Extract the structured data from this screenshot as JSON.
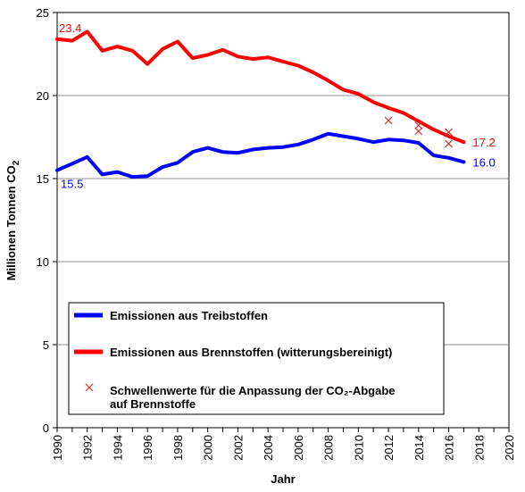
{
  "chart_data": {
    "type": "line",
    "xlabel": "Jahr",
    "ylabel": "Millionen Tonnen CO",
    "ylabel_sub": "2",
    "xlim": [
      1990,
      2020
    ],
    "ylim": [
      0,
      25
    ],
    "xticks": [
      1990,
      1992,
      1994,
      1996,
      1998,
      2000,
      2002,
      2004,
      2006,
      2008,
      2010,
      2012,
      2014,
      2016,
      2018,
      2020
    ],
    "yticks": [
      0,
      5,
      10,
      15,
      20,
      25
    ],
    "grid": "horizontal",
    "legend_position": "bottom-left",
    "series": [
      {
        "name": "Emissionen aus Treibstoffen",
        "color": "#0000ff",
        "x": [
          1990,
          1991,
          1992,
          1993,
          1994,
          1995,
          1996,
          1997,
          1998,
          1999,
          2000,
          2001,
          2002,
          2003,
          2004,
          2005,
          2006,
          2007,
          2008,
          2009,
          2010,
          2011,
          2012,
          2013,
          2014,
          2015,
          2016,
          2017
        ],
        "values": [
          15.5,
          15.9,
          16.3,
          15.25,
          15.4,
          15.1,
          15.15,
          15.7,
          15.95,
          16.6,
          16.85,
          16.6,
          16.55,
          16.75,
          16.85,
          16.9,
          17.05,
          17.35,
          17.7,
          17.55,
          17.4,
          17.2,
          17.35,
          17.3,
          17.15,
          16.4,
          16.25,
          16.0
        ]
      },
      {
        "name": "Emissionen aus Brennstoffen (witterungsbereinigt)",
        "color": "#ff0000",
        "x": [
          1990,
          1991,
          1992,
          1993,
          1994,
          1995,
          1996,
          1997,
          1998,
          1999,
          2000,
          2001,
          2002,
          2003,
          2004,
          2005,
          2006,
          2007,
          2008,
          2009,
          2010,
          2011,
          2012,
          2013,
          2014,
          2015,
          2016,
          2017
        ],
        "values": [
          23.4,
          23.3,
          23.85,
          22.7,
          22.95,
          22.7,
          21.9,
          22.8,
          23.25,
          22.25,
          22.45,
          22.75,
          22.35,
          22.2,
          22.3,
          22.05,
          21.8,
          21.4,
          20.9,
          20.35,
          20.1,
          19.6,
          19.25,
          18.95,
          18.45,
          17.95,
          17.55,
          17.2
        ]
      },
      {
        "name": "Schwellenwerte für die Anpassung  der CO₂-Abgabe auf Brennstoffe",
        "legend_lines": [
          "Schwellenwerte für die Anpassung  der CO₂-Abgabe",
          "auf Brennstoffe"
        ],
        "color": "#e03030",
        "marker": "x",
        "x": [
          2012,
          2014,
          2014,
          2016,
          2016
        ],
        "values": [
          18.5,
          18.2,
          17.85,
          17.8,
          17.1
        ]
      }
    ],
    "data_labels": [
      {
        "text": "23.4",
        "series": 1,
        "x": 1990,
        "anchor": "start",
        "side": "above",
        "color": "#ff0000"
      },
      {
        "text": "15.5",
        "series": 0,
        "x": 1990,
        "anchor": "start",
        "side": "below",
        "color": "#0000ff"
      },
      {
        "text": "17.2",
        "series": 1,
        "x": 2017,
        "anchor": "start",
        "side": "right",
        "color": "#ff0000"
      },
      {
        "text": "16.0",
        "series": 0,
        "x": 2017,
        "anchor": "start",
        "side": "right",
        "color": "#0000ff"
      }
    ]
  }
}
